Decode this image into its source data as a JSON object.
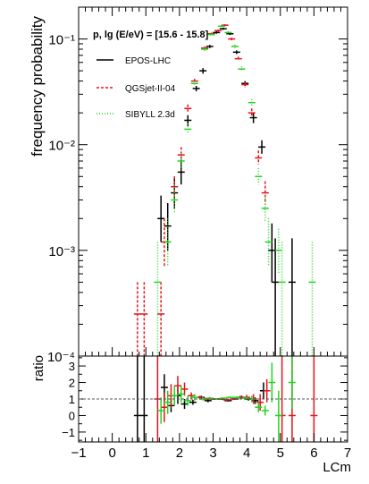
{
  "chart_data": {
    "type": "scatter",
    "upper": {
      "ylabel": "frequency probability",
      "yscale": "log",
      "ylim": [
        0.0001,
        0.2
      ],
      "ytick_labels": [
        "10⁻⁴",
        "10⁻³",
        "10⁻²",
        "10⁻¹"
      ],
      "ytick_values": [
        0.0001,
        0.001,
        0.01,
        0.1
      ],
      "annotation": "p, lg (E/eV) = [15.6 - 15.8]",
      "legend_position": "left",
      "series": [
        {
          "name": "EPOS-LHC",
          "color": "#000000",
          "style": "solid",
          "points": [
            {
              "x": 1.45,
              "y": 0.002,
              "ylo": 0.0012,
              "yhi": 0.0033
            },
            {
              "x": 1.65,
              "y": 0.0017,
              "ylo": 0.001,
              "yhi": 0.0028
            },
            {
              "x": 1.85,
              "y": 0.0035,
              "ylo": 0.0025,
              "yhi": 0.005
            },
            {
              "x": 2.05,
              "y": 0.0055,
              "ylo": 0.0042,
              "yhi": 0.0072
            },
            {
              "x": 2.25,
              "y": 0.017,
              "ylo": 0.015,
              "yhi": 0.019
            },
            {
              "x": 2.5,
              "y": 0.034,
              "ylo": 0.032,
              "yhi": 0.036
            },
            {
              "x": 2.7,
              "y": 0.05,
              "ylo": 0.047,
              "yhi": 0.053
            },
            {
              "x": 2.9,
              "y": 0.085,
              "ylo": 0.082,
              "yhi": 0.088
            },
            {
              "x": 3.1,
              "y": 0.115,
              "ylo": 0.112,
              "yhi": 0.118
            },
            {
              "x": 3.3,
              "y": 0.125,
              "ylo": 0.122,
              "yhi": 0.128
            },
            {
              "x": 3.5,
              "y": 0.112,
              "ylo": 0.109,
              "yhi": 0.115
            },
            {
              "x": 3.7,
              "y": 0.075,
              "ylo": 0.072,
              "yhi": 0.078
            },
            {
              "x": 3.95,
              "y": 0.038,
              "ylo": 0.036,
              "yhi": 0.04
            },
            {
              "x": 4.2,
              "y": 0.018,
              "ylo": 0.016,
              "yhi": 0.02
            },
            {
              "x": 4.45,
              "y": 0.0095,
              "ylo": 0.0082,
              "yhi": 0.011
            },
            {
              "x": 4.75,
              "y": 0.001,
              "ylo": 0.0005,
              "yhi": 0.0018
            },
            {
              "x": 4.85,
              "y": 0.0005,
              "ylo": 0.0001,
              "yhi": 0.0013
            },
            {
              "x": 5.35,
              "y": 0.0005,
              "ylo": 0.0001,
              "yhi": 0.0013
            }
          ]
        },
        {
          "name": "QGSjet-II-04",
          "color": "#e8121b",
          "style": "dashed",
          "points": [
            {
              "x": 0.75,
              "y": 0.00025,
              "ylo": 0.0001,
              "yhi": 0.0005
            },
            {
              "x": 0.95,
              "y": 0.00025,
              "ylo": 0.0001,
              "yhi": 0.0005
            },
            {
              "x": 1.45,
              "y": 0.00025,
              "ylo": 0.0001,
              "yhi": 0.0005
            },
            {
              "x": 1.55,
              "y": 0.0012,
              "ylo": 0.0007,
              "yhi": 0.002
            },
            {
              "x": 1.85,
              "y": 0.004,
              "ylo": 0.003,
              "yhi": 0.005
            },
            {
              "x": 2.05,
              "y": 0.008,
              "ylo": 0.0068,
              "yhi": 0.0095
            },
            {
              "x": 2.25,
              "y": 0.022,
              "ylo": 0.02,
              "yhi": 0.024
            },
            {
              "x": 2.45,
              "y": 0.04,
              "ylo": 0.038,
              "yhi": 0.042
            },
            {
              "x": 2.75,
              "y": 0.082,
              "ylo": 0.079,
              "yhi": 0.085
            },
            {
              "x": 2.95,
              "y": 0.112,
              "ylo": 0.109,
              "yhi": 0.115
            },
            {
              "x": 3.15,
              "y": 0.12,
              "ylo": 0.117,
              "yhi": 0.123
            },
            {
              "x": 3.35,
              "y": 0.135,
              "ylo": 0.132,
              "yhi": 0.138
            },
            {
              "x": 3.55,
              "y": 0.1,
              "ylo": 0.097,
              "yhi": 0.103
            },
            {
              "x": 3.75,
              "y": 0.065,
              "ylo": 0.062,
              "yhi": 0.068
            },
            {
              "x": 3.95,
              "y": 0.037,
              "ylo": 0.035,
              "yhi": 0.039
            },
            {
              "x": 4.15,
              "y": 0.02,
              "ylo": 0.018,
              "yhi": 0.022
            },
            {
              "x": 4.35,
              "y": 0.0075,
              "ylo": 0.0065,
              "yhi": 0.0088
            },
            {
              "x": 4.55,
              "y": 0.0035,
              "ylo": 0.0027,
              "yhi": 0.0045
            }
          ]
        },
        {
          "name": "SIBYLL 2.3d",
          "color": "#1fd61f",
          "style": "dotted",
          "points": [
            {
              "x": 1.35,
              "y": 0.0005,
              "ylo": 0.0001,
              "yhi": 0.0012
            },
            {
              "x": 1.65,
              "y": 0.0012,
              "ylo": 0.0007,
              "yhi": 0.002
            },
            {
              "x": 1.85,
              "y": 0.003,
              "ylo": 0.0022,
              "yhi": 0.0042
            },
            {
              "x": 2.05,
              "y": 0.007,
              "ylo": 0.0058,
              "yhi": 0.0083
            },
            {
              "x": 2.25,
              "y": 0.014,
              "ylo": 0.0125,
              "yhi": 0.0158
            },
            {
              "x": 2.45,
              "y": 0.038,
              "ylo": 0.036,
              "yhi": 0.04
            },
            {
              "x": 2.75,
              "y": 0.08,
              "ylo": 0.077,
              "yhi": 0.083
            },
            {
              "x": 2.95,
              "y": 0.11,
              "ylo": 0.107,
              "yhi": 0.113
            },
            {
              "x": 3.25,
              "y": 0.132,
              "ylo": 0.129,
              "yhi": 0.135
            },
            {
              "x": 3.45,
              "y": 0.115,
              "ylo": 0.112,
              "yhi": 0.118
            },
            {
              "x": 3.65,
              "y": 0.085,
              "ylo": 0.082,
              "yhi": 0.088
            },
            {
              "x": 3.85,
              "y": 0.052,
              "ylo": 0.049,
              "yhi": 0.055
            },
            {
              "x": 4.15,
              "y": 0.025,
              "ylo": 0.023,
              "yhi": 0.027
            },
            {
              "x": 4.35,
              "y": 0.005,
              "ylo": 0.0042,
              "yhi": 0.006
            },
            {
              "x": 4.55,
              "y": 0.0025,
              "ylo": 0.0019,
              "yhi": 0.0033
            },
            {
              "x": 4.65,
              "y": 0.0012,
              "ylo": 0.0007,
              "yhi": 0.002
            },
            {
              "x": 4.95,
              "y": 0.001,
              "ylo": 0.0006,
              "yhi": 0.0016
            },
            {
              "x": 5.05,
              "y": 0.0005,
              "ylo": 0.0001,
              "yhi": 0.0012
            },
            {
              "x": 5.95,
              "y": 0.0005,
              "ylo": 0.0001,
              "yhi": 0.0012
            }
          ]
        }
      ]
    },
    "lower": {
      "ylabel": "ratio",
      "ylim": [
        -1.6,
        3.6
      ],
      "ytick_values": [
        -1,
        0,
        1,
        2,
        3
      ],
      "ytick_labels": [
        "−1",
        "0",
        "1",
        "2",
        "3"
      ],
      "reference_line": 1,
      "xlabel": "LCm",
      "xlim": [
        -1,
        7
      ],
      "xtick_values": [
        -1,
        0,
        1,
        2,
        3,
        4,
        5,
        6,
        7
      ],
      "xtick_labels": [
        "−1",
        "0",
        "1",
        "2",
        "3",
        "4",
        "5",
        "6",
        "7"
      ],
      "series": [
        {
          "name": "EPOS-LHC",
          "color": "#000000",
          "points": [
            {
              "x": 0.75,
              "y": 0,
              "ylo": -1.6,
              "yhi": 3.6
            },
            {
              "x": 0.95,
              "y": 0,
              "ylo": -1.6,
              "yhi": 3.6
            },
            {
              "x": 1.55,
              "y": 1.7,
              "ylo": 0.9,
              "yhi": 2.5
            },
            {
              "x": 1.75,
              "y": 0.6,
              "ylo": 0.2,
              "yhi": 1.0
            },
            {
              "x": 1.95,
              "y": 1.2,
              "ylo": 0.7,
              "yhi": 1.7
            },
            {
              "x": 2.15,
              "y": 0.7,
              "ylo": 0.4,
              "yhi": 1.0
            },
            {
              "x": 2.4,
              "y": 0.8,
              "ylo": 0.65,
              "yhi": 0.95
            },
            {
              "x": 2.65,
              "y": 1.1,
              "ylo": 1.0,
              "yhi": 1.2
            },
            {
              "x": 2.85,
              "y": 0.9,
              "ylo": 0.8,
              "yhi": 1.0
            },
            {
              "x": 3.05,
              "y": 1.0,
              "ylo": 0.95,
              "yhi": 1.05
            },
            {
              "x": 3.25,
              "y": 1.0,
              "ylo": 0.95,
              "yhi": 1.05
            },
            {
              "x": 3.45,
              "y": 0.9,
              "ylo": 0.85,
              "yhi": 0.95
            },
            {
              "x": 3.65,
              "y": 1.0,
              "ylo": 0.95,
              "yhi": 1.05
            },
            {
              "x": 3.85,
              "y": 1.1,
              "ylo": 1.0,
              "yhi": 1.2
            },
            {
              "x": 4.05,
              "y": 1.0,
              "ylo": 0.9,
              "yhi": 1.1
            },
            {
              "x": 4.25,
              "y": 0.9,
              "ylo": 0.7,
              "yhi": 1.1
            },
            {
              "x": 4.5,
              "y": 1.5,
              "ylo": 1.0,
              "yhi": 2.0
            }
          ]
        },
        {
          "name": "QGSjet-II-04",
          "color": "#e8121b",
          "points": [
            {
              "x": 1.35,
              "y": 1.0,
              "ylo": -1.6,
              "yhi": 3.6
            },
            {
              "x": 1.55,
              "y": 0.5,
              "ylo": -0.4,
              "yhi": 1.4
            },
            {
              "x": 1.75,
              "y": 1.2,
              "ylo": 0.5,
              "yhi": 1.9
            },
            {
              "x": 1.95,
              "y": 1.8,
              "ylo": 1.2,
              "yhi": 2.4
            },
            {
              "x": 2.15,
              "y": 1.6,
              "ylo": 1.2,
              "yhi": 2.0
            },
            {
              "x": 2.35,
              "y": 1.2,
              "ylo": 1.0,
              "yhi": 1.4
            },
            {
              "x": 2.6,
              "y": 1.1,
              "ylo": 1.0,
              "yhi": 1.2
            },
            {
              "x": 2.8,
              "y": 1.0,
              "ylo": 0.93,
              "yhi": 1.07
            },
            {
              "x": 3.0,
              "y": 1.0,
              "ylo": 0.95,
              "yhi": 1.05
            },
            {
              "x": 3.2,
              "y": 1.0,
              "ylo": 0.95,
              "yhi": 1.05
            },
            {
              "x": 3.4,
              "y": 0.95,
              "ylo": 0.9,
              "yhi": 1.0
            },
            {
              "x": 3.6,
              "y": 1.0,
              "ylo": 0.94,
              "yhi": 1.06
            },
            {
              "x": 3.8,
              "y": 1.1,
              "ylo": 1.0,
              "yhi": 1.2
            },
            {
              "x": 4.0,
              "y": 1.1,
              "ylo": 0.95,
              "yhi": 1.25
            },
            {
              "x": 4.2,
              "y": 1.0,
              "ylo": 0.7,
              "yhi": 1.3
            },
            {
              "x": 4.4,
              "y": 0.8,
              "ylo": 0.3,
              "yhi": 1.3
            },
            {
              "x": 4.6,
              "y": 1.5,
              "ylo": 0.8,
              "yhi": 2.2
            },
            {
              "x": 5.05,
              "y": 0.0,
              "ylo": -1.6,
              "yhi": 3.6
            },
            {
              "x": 5.35,
              "y": 0.0,
              "ylo": -1.6,
              "yhi": 3.6
            },
            {
              "x": 6.0,
              "y": 0.0,
              "ylo": -1.6,
              "yhi": 3.6
            }
          ]
        },
        {
          "name": "SIBYLL 2.3d",
          "color": "#1fd61f",
          "points": [
            {
              "x": 1.45,
              "y": 0.3,
              "ylo": -0.5,
              "yhi": 1.1
            },
            {
              "x": 1.65,
              "y": 0.8,
              "ylo": 0.1,
              "yhi": 1.5
            },
            {
              "x": 1.85,
              "y": 1.2,
              "ylo": 0.6,
              "yhi": 1.8
            },
            {
              "x": 2.05,
              "y": 1.3,
              "ylo": 0.8,
              "yhi": 1.8
            },
            {
              "x": 2.25,
              "y": 0.9,
              "ylo": 0.6,
              "yhi": 1.2
            },
            {
              "x": 2.45,
              "y": 1.1,
              "ylo": 0.9,
              "yhi": 1.3
            },
            {
              "x": 2.7,
              "y": 1.0,
              "ylo": 0.9,
              "yhi": 1.1
            },
            {
              "x": 2.9,
              "y": 1.05,
              "ylo": 0.98,
              "yhi": 1.12
            },
            {
              "x": 3.1,
              "y": 1.0,
              "ylo": 0.95,
              "yhi": 1.05
            },
            {
              "x": 3.3,
              "y": 1.05,
              "ylo": 1.0,
              "yhi": 1.1
            },
            {
              "x": 3.5,
              "y": 1.1,
              "ylo": 1.05,
              "yhi": 1.15
            },
            {
              "x": 3.7,
              "y": 1.1,
              "ylo": 1.03,
              "yhi": 1.17
            },
            {
              "x": 3.95,
              "y": 1.05,
              "ylo": 0.95,
              "yhi": 1.15
            },
            {
              "x": 4.15,
              "y": 1.0,
              "ylo": 0.8,
              "yhi": 1.2
            },
            {
              "x": 4.35,
              "y": 0.5,
              "ylo": 0.2,
              "yhi": 0.8
            },
            {
              "x": 4.55,
              "y": 0.3,
              "ylo": 0.0,
              "yhi": 0.6
            },
            {
              "x": 4.75,
              "y": 2.0,
              "ylo": 0.8,
              "yhi": 3.2
            },
            {
              "x": 4.95,
              "y": 0.0,
              "ylo": -1.6,
              "yhi": 1.5
            },
            {
              "x": 5.35,
              "y": 2.0,
              "ylo": 0.4,
              "yhi": 3.6
            }
          ]
        }
      ]
    }
  }
}
